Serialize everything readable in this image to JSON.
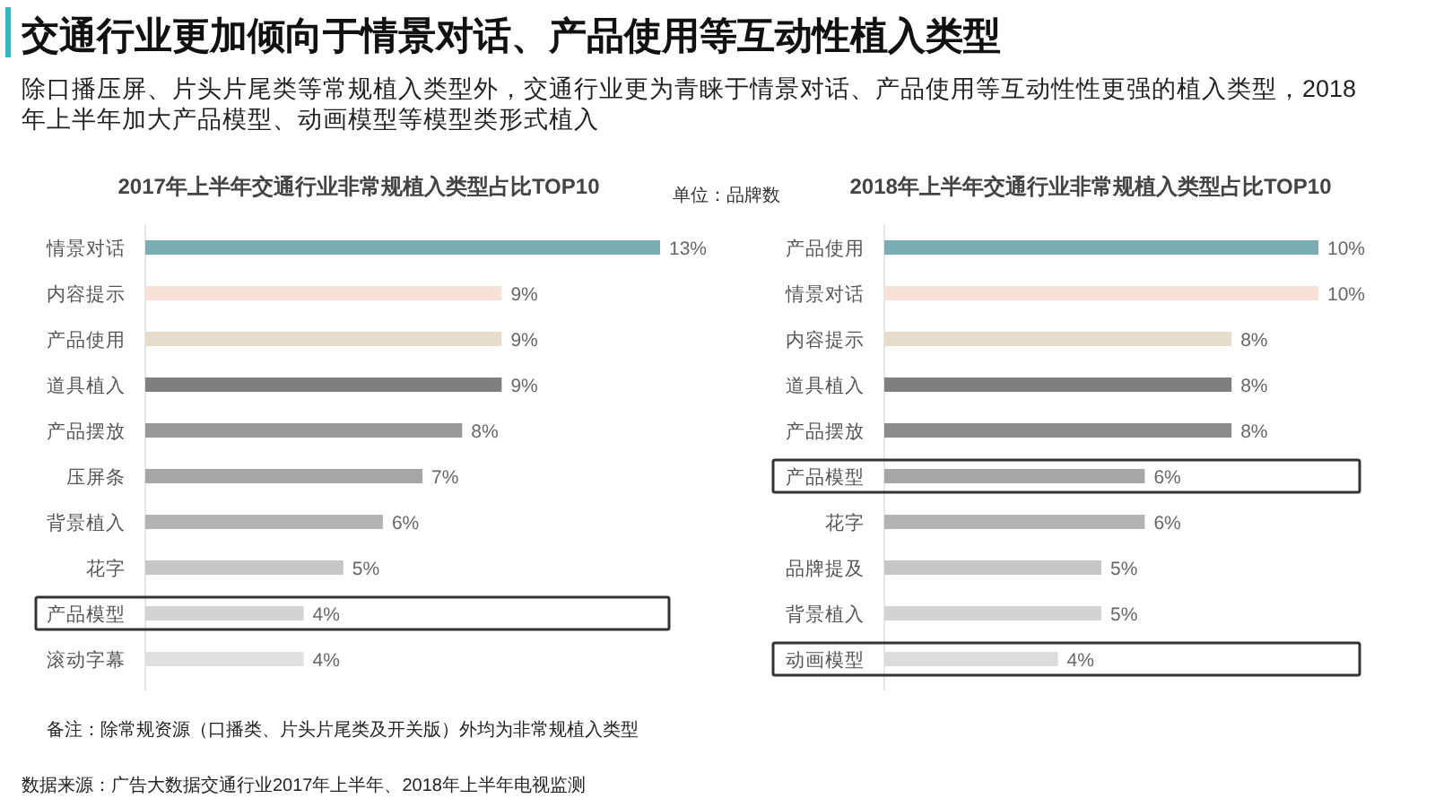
{
  "chart_data": [
    {
      "type": "other",
      "title": "交通行业更加倾向于情景对话、产品使用等互动性植入类型",
      "subtitle": "除口播压屏、片头片尾类等常规植入类型外，交通行业更为青睐于情景对话、产品使用等互动性性更强的植入类型，2018年上半年加大产品模型、动画模型等模型类形式植入",
      "annotations": [
        "单位：品牌数",
        "备注：除常规资源（口播类、片头片尾类及开关版）外均为非常规植入类型",
        "数据来源：广告大数据交通行业2017年上半年、2018年上半年电视监测"
      ]
    },
    {
      "type": "bar",
      "orientation": "horizontal",
      "title": "2017年上半年交通行业非常规植入类型占比TOP10",
      "categories": [
        "情景对话",
        "内容提示",
        "产品使用",
        "道具植入",
        "产品摆放",
        "压屏条",
        "背景植入",
        "花字",
        "产品模型",
        "滚动字幕"
      ],
      "values": [
        13,
        9,
        9,
        9,
        8,
        7,
        6,
        5,
        4,
        4
      ],
      "value_labels": [
        "13%",
        "9%",
        "9%",
        "9%",
        "8%",
        "7%",
        "6%",
        "5%",
        "4%",
        "4%"
      ],
      "colors": [
        "#7aadb3",
        "#f7e0d6",
        "#e6dccb",
        "#7f7f7f",
        "#999999",
        "#a6a6a6",
        "#b3b3b3",
        "#c6c6c6",
        "#d3d3d3",
        "#e0e0e0"
      ]
    },
    {
      "type": "bar",
      "orientation": "horizontal",
      "title": "2018年上半年交通行业非常规植入类型占比TOP10",
      "categories": [
        "产品使用",
        "情景对话",
        "内容提示",
        "道具植入",
        "产品摆放",
        "产品模型",
        "花字",
        "品牌提及",
        "背景植入",
        "动画模型"
      ],
      "values": [
        10,
        10,
        8,
        8,
        8,
        6,
        6,
        5,
        5,
        4
      ],
      "value_labels": [
        "10%",
        "10%",
        "8%",
        "8%",
        "8%",
        "6%",
        "6%",
        "5%",
        "5%",
        "4%"
      ],
      "colors": [
        "#7aadb3",
        "#f7e0d6",
        "#e6dccb",
        "#7f7f7f",
        "#8c8c8c",
        "#a6a6a6",
        "#b3b3b3",
        "#c6c6c6",
        "#d3d3d3",
        "#dcdcdc"
      ]
    }
  ]
}
